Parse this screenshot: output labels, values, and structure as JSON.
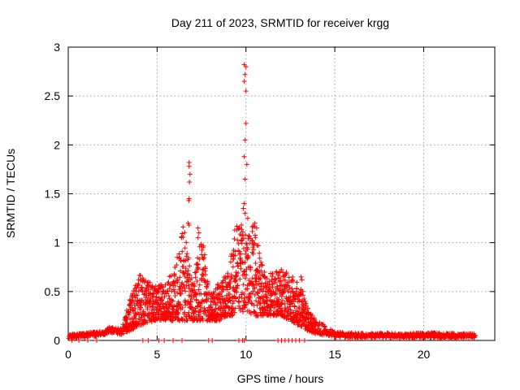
{
  "chart_data": {
    "type": "scatter",
    "title": "Day 211 of 2023, SRMTID for receiver krgg",
    "xlabel": "GPS time / hours",
    "ylabel": "SRMTID / TECUs",
    "xlim": [
      0,
      24
    ],
    "ylim": [
      0,
      3
    ],
    "xticks": [
      0,
      5,
      10,
      15,
      20
    ],
    "yticks": [
      0,
      0.5,
      1,
      1.5,
      2,
      2.5,
      3
    ],
    "ytick_labels": [
      "0",
      "0.5",
      "1",
      "1.5",
      "2",
      "2.5",
      "3"
    ],
    "grid": true,
    "marker": "+",
    "series": [
      {
        "name": "SRMTID",
        "color": "#ff0000",
        "envelope": [
          [
            0.0,
            0.02,
            0.06
          ],
          [
            1.0,
            0.03,
            0.08
          ],
          [
            2.0,
            0.05,
            0.1
          ],
          [
            2.3,
            0.08,
            0.14
          ],
          [
            3.0,
            0.06,
            0.12
          ],
          [
            3.5,
            0.1,
            0.45
          ],
          [
            4.0,
            0.15,
            0.68
          ],
          [
            4.5,
            0.18,
            0.6
          ],
          [
            5.0,
            0.2,
            0.55
          ],
          [
            5.5,
            0.2,
            0.6
          ],
          [
            6.0,
            0.2,
            0.75
          ],
          [
            6.5,
            0.2,
            1.2
          ],
          [
            7.0,
            0.2,
            0.55
          ],
          [
            7.5,
            0.2,
            1.1
          ],
          [
            8.0,
            0.2,
            0.45
          ],
          [
            8.5,
            0.2,
            0.6
          ],
          [
            9.0,
            0.25,
            0.7
          ],
          [
            9.5,
            0.25,
            1.3
          ],
          [
            10.0,
            0.3,
            1.1
          ],
          [
            10.5,
            0.25,
            1.2
          ],
          [
            11.0,
            0.25,
            0.7
          ],
          [
            11.5,
            0.25,
            0.7
          ],
          [
            12.0,
            0.25,
            0.75
          ],
          [
            13.0,
            0.15,
            0.6
          ],
          [
            13.5,
            0.1,
            0.32
          ],
          [
            14.0,
            0.06,
            0.2
          ],
          [
            15.0,
            0.03,
            0.09
          ],
          [
            16.0,
            0.02,
            0.08
          ],
          [
            17.0,
            0.02,
            0.07
          ],
          [
            18.0,
            0.03,
            0.08
          ],
          [
            19.0,
            0.02,
            0.07
          ],
          [
            20.0,
            0.03,
            0.08
          ],
          [
            21.0,
            0.02,
            0.08
          ],
          [
            22.0,
            0.02,
            0.07
          ],
          [
            22.9,
            0.03,
            0.07
          ]
        ],
        "spikes": [
          [
            6.8,
            1.82
          ],
          [
            6.8,
            1.78
          ],
          [
            6.85,
            1.7
          ],
          [
            6.82,
            1.62
          ],
          [
            6.8,
            1.45
          ],
          [
            6.78,
            1.43
          ],
          [
            6.75,
            1.2
          ],
          [
            6.8,
            1.18
          ],
          [
            7.3,
            1.15
          ],
          [
            7.35,
            1.1
          ],
          [
            7.3,
            1.05
          ],
          [
            9.9,
            2.82
          ],
          [
            10.0,
            2.8
          ],
          [
            9.95,
            2.72
          ],
          [
            9.9,
            2.65
          ],
          [
            10.0,
            2.55
          ],
          [
            10.0,
            2.22
          ],
          [
            9.95,
            2.05
          ],
          [
            9.9,
            1.88
          ],
          [
            10.05,
            1.8
          ],
          [
            9.95,
            1.65
          ],
          [
            9.9,
            1.4
          ],
          [
            9.85,
            1.35
          ],
          [
            9.95,
            1.3
          ],
          [
            10.1,
            1.25
          ],
          [
            10.5,
            1.2
          ],
          [
            10.6,
            1.15
          ],
          [
            13.1,
            0.65
          ],
          [
            13.15,
            0.62
          ],
          [
            13.2,
            0.5
          ]
        ],
        "zero_points": [
          [
            0.2,
            0.0
          ],
          [
            0.6,
            0.0
          ],
          [
            1.1,
            0.0
          ],
          [
            1.6,
            0.0
          ],
          [
            4.2,
            0.0
          ],
          [
            4.5,
            0.0
          ],
          [
            5.1,
            0.0
          ],
          [
            5.4,
            0.0
          ],
          [
            5.9,
            0.0
          ],
          [
            6.4,
            0.0
          ],
          [
            7.9,
            0.0
          ],
          [
            8.1,
            0.0
          ],
          [
            9.6,
            0.0
          ],
          [
            9.8,
            0.0
          ],
          [
            9.9,
            0.0
          ],
          [
            11.8,
            0.0
          ],
          [
            12.0,
            0.0
          ],
          [
            12.2,
            0.0
          ],
          [
            12.4,
            0.0
          ],
          [
            12.6,
            0.0
          ],
          [
            12.8,
            0.0
          ],
          [
            13.0,
            0.0
          ],
          [
            13.3,
            0.0
          ]
        ]
      }
    ]
  }
}
